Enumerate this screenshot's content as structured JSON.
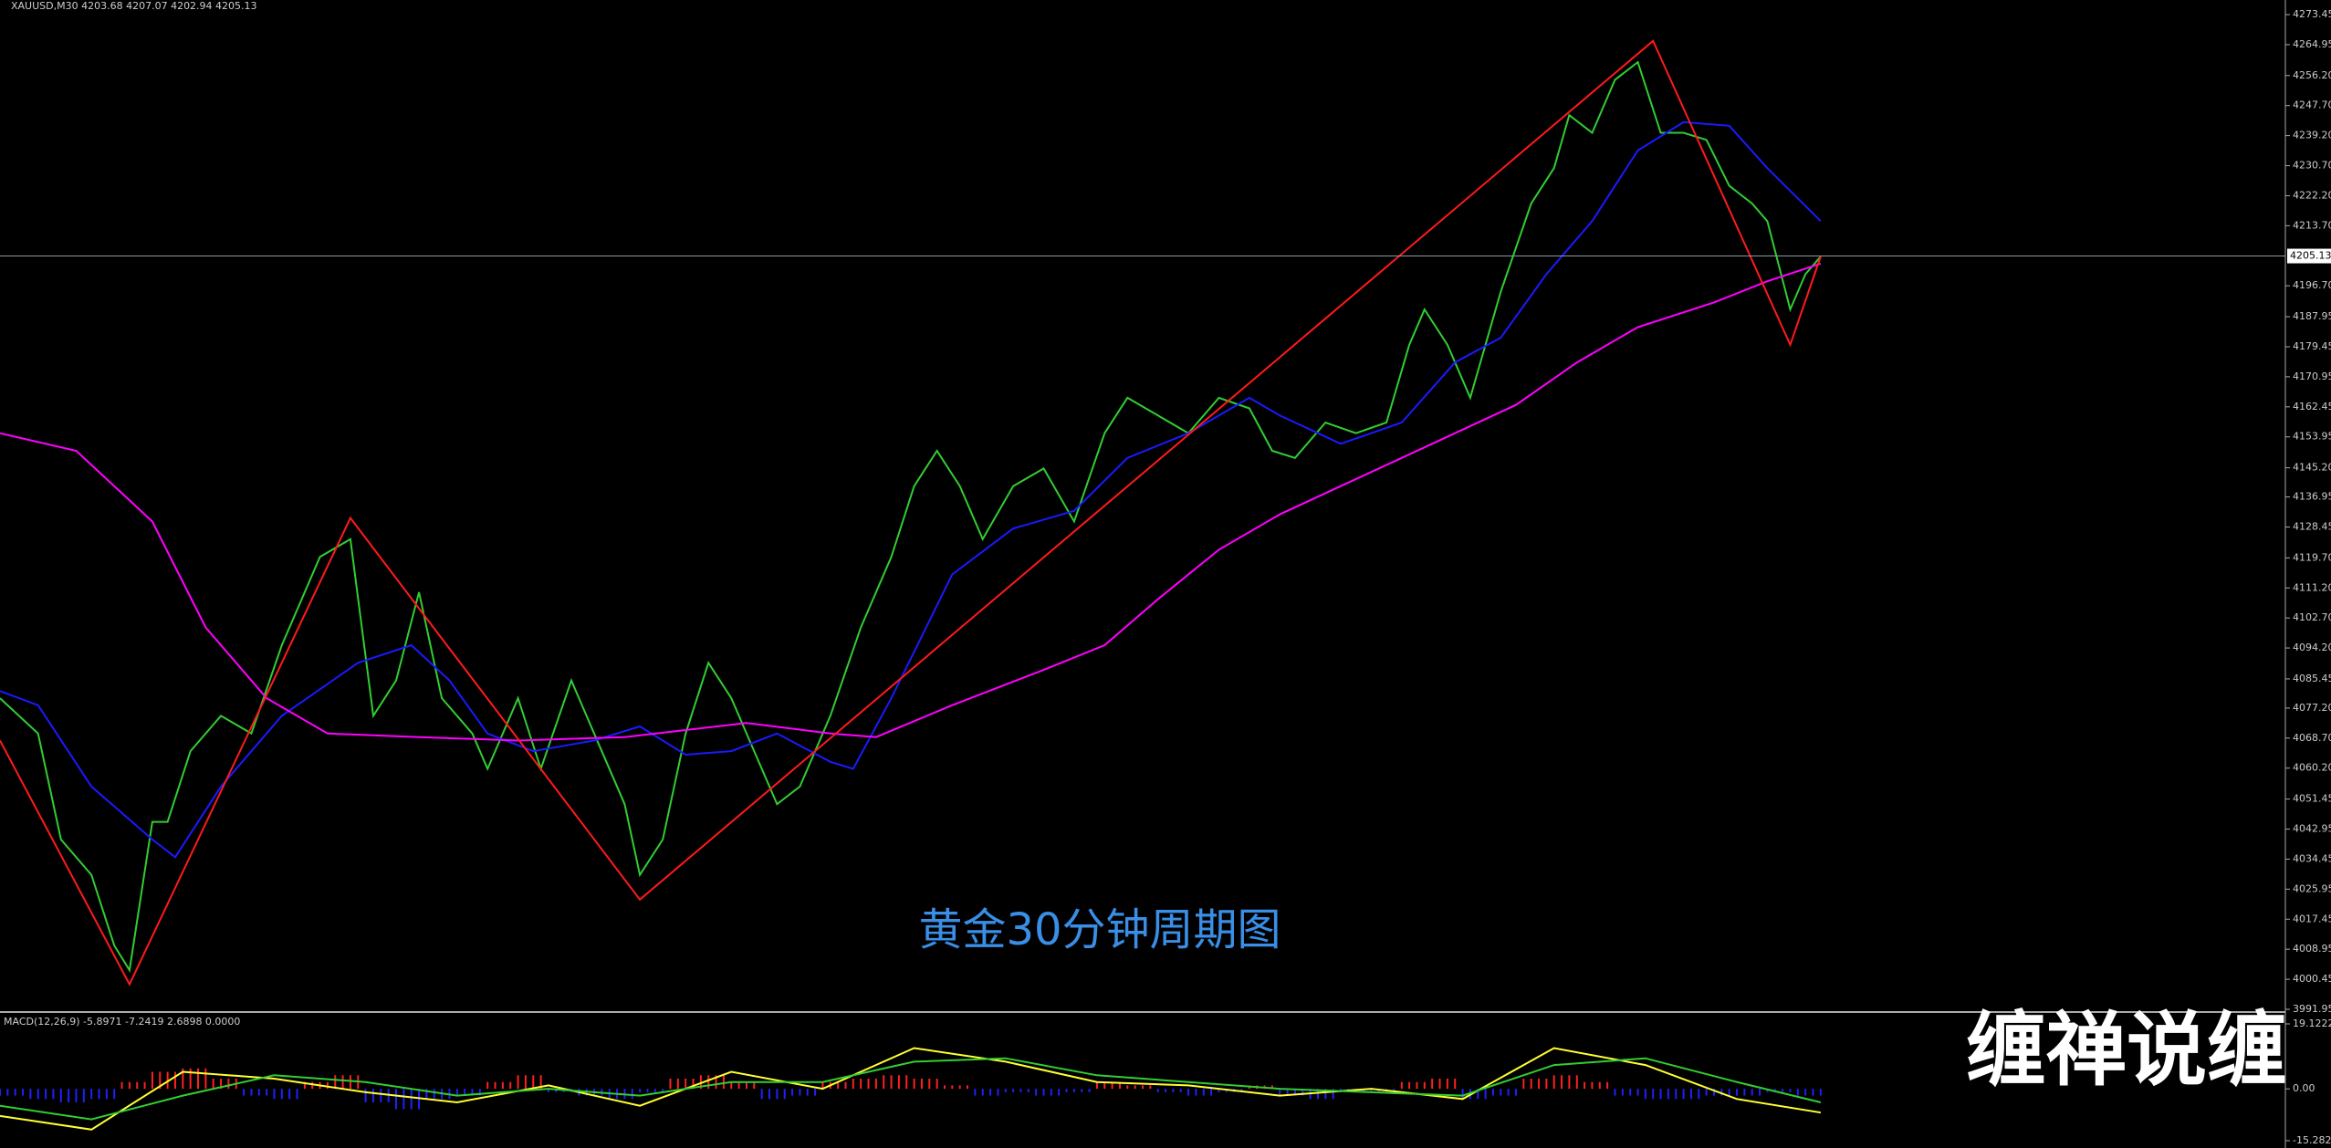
{
  "chart_data": [
    {
      "type": "line",
      "title": "XAUUSD,M30  4203.68 4207.07 4202.94 4205.13",
      "annotation": "黄金30分钟周期图",
      "xlim": [
        0,
        300
      ],
      "ylim": [
        3991.95,
        4273.45
      ],
      "yticks": [
        4273.45,
        4264.95,
        {
          "value": 4256.2,
          "label": "4256.20"
        },
        {
          "value": 4247.7,
          "label": "4247.70"
        },
        {
          "value": 4239.2,
          "label": "4239.20"
        },
        {
          "value": 4230.7,
          "label": "4230.70"
        },
        {
          "value": 4222.2,
          "label": "4222.20"
        },
        {
          "value": 4213.7,
          "label": "4213.70"
        },
        {
          "value": 4196.7,
          "label": "4196.70"
        },
        4187.95,
        4179.45,
        4170.95,
        4162.45,
        4153.95,
        {
          "value": 4145.2,
          "label": "4145.20"
        },
        4136.95,
        4128.45,
        {
          "value": 4119.7,
          "label": "4119.70"
        },
        {
          "value": 4111.2,
          "label": "4111.20"
        },
        {
          "value": 4102.7,
          "label": "4102.70"
        },
        {
          "value": 4094.2,
          "label": "4094.20"
        },
        4085.45,
        {
          "value": 4077.2,
          "label": "4077.20"
        },
        {
          "value": 4068.7,
          "label": "4068.70"
        },
        {
          "value": 4060.2,
          "label": "4060.20"
        },
        4051.45,
        4042.95,
        4034.45,
        4025.95,
        4017.45,
        4008.95,
        4000.45,
        3991.95
      ],
      "current_price": 4205.13,
      "series": [
        {
          "color": "#32cd32",
          "x": [
            0,
            5,
            8,
            12,
            15,
            17,
            20,
            22,
            25,
            29,
            33,
            37,
            42,
            46,
            49,
            52,
            55,
            58,
            62,
            64,
            68,
            71,
            75,
            78,
            82,
            84,
            87,
            90,
            93,
            96,
            99,
            102,
            105,
            109,
            113,
            117,
            120,
            123,
            126,
            129,
            133,
            137,
            141,
            145,
            148,
            152,
            156,
            160,
            164,
            167,
            170,
            174,
            178,
            182,
            185,
            187,
            190,
            193,
            197,
            201,
            204,
            206,
            209,
            212,
            215,
            218,
            221,
            224,
            227,
            230,
            232,
            235,
            237,
            239
          ],
          "values": [
            4080,
            4070,
            4040,
            4030,
            4010,
            4003,
            4045,
            4045,
            4065,
            4075,
            4070,
            4095,
            4120,
            4125,
            4075,
            4085,
            4110,
            4080,
            4070,
            4060,
            4080,
            4060,
            4085,
            4070,
            4050,
            4030,
            4040,
            4070,
            4090,
            4080,
            4065,
            4050,
            4055,
            4075,
            4100,
            4120,
            4140,
            4150,
            4140,
            4125,
            4140,
            4145,
            4130,
            4155,
            4165,
            4160,
            4155,
            4165,
            4162,
            4150,
            4148,
            4158,
            4155,
            4158,
            4180,
            4190,
            4180,
            4165,
            4195,
            4220,
            4230,
            4245,
            4240,
            4255,
            4260,
            4240,
            4240,
            4238,
            4225,
            4220,
            4215,
            4190,
            4200,
            4205
          ]
        },
        {
          "color": "#1a1aff",
          "x": [
            0,
            5,
            12,
            20,
            23,
            29,
            37,
            47,
            54,
            59,
            64,
            70,
            78,
            84,
            90,
            96,
            102,
            109,
            112,
            117,
            125,
            133,
            141,
            148,
            156,
            164,
            168,
            176,
            184,
            191,
            197,
            203,
            209,
            215,
            221,
            227,
            232,
            239
          ],
          "values": [
            4082,
            4078,
            4055,
            4040,
            4035,
            4055,
            4075,
            4090,
            4095,
            4085,
            4070,
            4065,
            4068,
            4072,
            4064,
            4065,
            4070,
            4062,
            4060,
            4080,
            4115,
            4128,
            4133,
            4148,
            4155,
            4165,
            4160,
            4152,
            4158,
            4175,
            4182,
            4200,
            4215,
            4235,
            4243,
            4242,
            4230,
            4215
          ]
        },
        {
          "color": "#ff00ff",
          "x": [
            0,
            10,
            20,
            27,
            35,
            43,
            55,
            68,
            82,
            98,
            109,
            115,
            125,
            137,
            145,
            152,
            160,
            168,
            176,
            184,
            191,
            199,
            207,
            215,
            225,
            232,
            239
          ],
          "values": [
            4155,
            4150,
            4130,
            4100,
            4080,
            4070,
            4069,
            4068,
            4069,
            4073,
            4070,
            4069,
            4078,
            4088,
            4095,
            4108,
            4122,
            4132,
            4140,
            4148,
            4155,
            4163,
            4175,
            4185,
            4192,
            4198,
            4203
          ]
        },
        {
          "color": "#ff1a1a",
          "x": [
            0,
            17,
            46,
            84,
            217,
            235,
            239
          ],
          "values": [
            4068,
            3999,
            4131,
            4023,
            4266,
            4180,
            4205
          ]
        }
      ]
    },
    {
      "type": "macd",
      "title": "MACD(12,26,9) -5.8971 -7.2419 2.6898 0.0000",
      "xlim": [
        0,
        300
      ],
      "ylim": [
        -15.2828,
        19.1222
      ],
      "yticks": [
        19.1222,
        {
          "value": 0,
          "label": "0.00"
        },
        -15.2828
      ],
      "series": [
        {
          "kind": "bar",
          "color": "#ff2020",
          "color_negative": "#2020ff",
          "x": [
            0,
            4,
            8,
            12,
            16,
            20,
            24,
            28,
            32,
            36,
            40,
            44,
            48,
            52,
            56,
            60,
            64,
            68,
            72,
            76,
            80,
            84,
            88,
            92,
            96,
            100,
            104,
            108,
            112,
            116,
            120,
            124,
            128,
            132,
            136,
            140,
            144,
            148,
            152,
            156,
            160,
            164,
            168,
            172,
            176,
            180,
            184,
            188,
            192,
            196,
            200,
            204,
            208,
            212,
            216,
            220,
            224,
            228,
            232,
            236
          ],
          "values": [
            -2,
            -3,
            -4,
            -3,
            2,
            5,
            6,
            3,
            -2,
            -3,
            2,
            4,
            -4,
            -6,
            -3,
            -2,
            2,
            4,
            -1,
            -2,
            -3,
            -1,
            3,
            4,
            2,
            -3,
            -2,
            2,
            3,
            4,
            3,
            1,
            -2,
            -1,
            -2,
            -1,
            2,
            1,
            -1,
            -2,
            -1,
            1,
            -2,
            -3,
            -1,
            -1,
            2,
            3,
            -3,
            -2,
            3,
            4,
            2,
            -2,
            -3,
            -3,
            -2,
            -2,
            -1,
            -2
          ]
        },
        {
          "kind": "line",
          "color": "#ffff33",
          "x": [
            0,
            12,
            24,
            36,
            48,
            60,
            72,
            84,
            96,
            108,
            120,
            132,
            144,
            156,
            168,
            180,
            192,
            204,
            216,
            228,
            239
          ],
          "values": [
            -8,
            -12,
            5,
            3,
            -1,
            -4,
            1,
            -5,
            5,
            0,
            12,
            8,
            2,
            1,
            -2,
            0,
            -3,
            12,
            7,
            -3,
            -7
          ]
        },
        {
          "kind": "line",
          "color": "#32cd32",
          "x": [
            0,
            12,
            24,
            36,
            48,
            60,
            72,
            84,
            96,
            108,
            120,
            132,
            144,
            156,
            168,
            180,
            192,
            204,
            216,
            228,
            239
          ],
          "values": [
            -5,
            -9,
            -2,
            4,
            2,
            -2,
            0,
            -2,
            2,
            2,
            8,
            9,
            4,
            2,
            0,
            -1,
            -2,
            7,
            9,
            2,
            -4
          ]
        }
      ]
    }
  ],
  "watermark": "缠禅说缠"
}
